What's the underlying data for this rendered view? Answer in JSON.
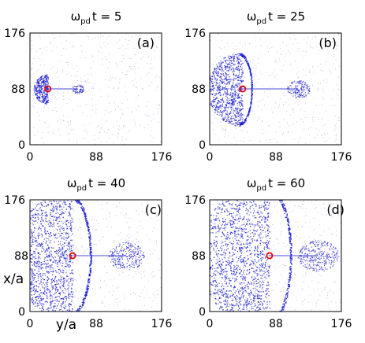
{
  "chart_data": {
    "type": "scatter",
    "description_axes": {
      "xlabel": "y/a",
      "ylabel": "x/a"
    },
    "xlim": [
      0,
      176
    ],
    "ylim": [
      0,
      176
    ],
    "xticks": [
      "0",
      "88",
      "176"
    ],
    "yticks": [
      "0",
      "88",
      "176"
    ],
    "colors": {
      "particles": "#1f1fd0",
      "marker": "#e60000",
      "frame": "#000000"
    },
    "panels": [
      {
        "id": "a",
        "label": "(a)",
        "title_symbol": "ω",
        "title_sub": "pd",
        "title_rest": "t = 5",
        "marker": {
          "x": 24,
          "y": 88
        },
        "expansion": 0.12,
        "wake_length": 0.35
      },
      {
        "id": "b",
        "label": "(b)",
        "title_symbol": "ω",
        "title_sub": "pd",
        "title_rest": "t = 25",
        "marker": {
          "x": 44,
          "y": 88
        },
        "expansion": 0.45,
        "wake_length": 0.75
      },
      {
        "id": "c",
        "label": "(c)",
        "title_symbol": "ω",
        "title_sub": "pd",
        "title_rest": "t = 40",
        "marker": {
          "x": 57,
          "y": 88
        },
        "expansion": 0.85,
        "wake_length": 0.8
      },
      {
        "id": "d",
        "label": "(d)",
        "title_symbol": "ω",
        "title_sub": "pd",
        "title_rest": "t = 60",
        "marker": {
          "x": 80,
          "y": 88
        },
        "expansion": 1.0,
        "wake_length": 0.9
      }
    ]
  }
}
